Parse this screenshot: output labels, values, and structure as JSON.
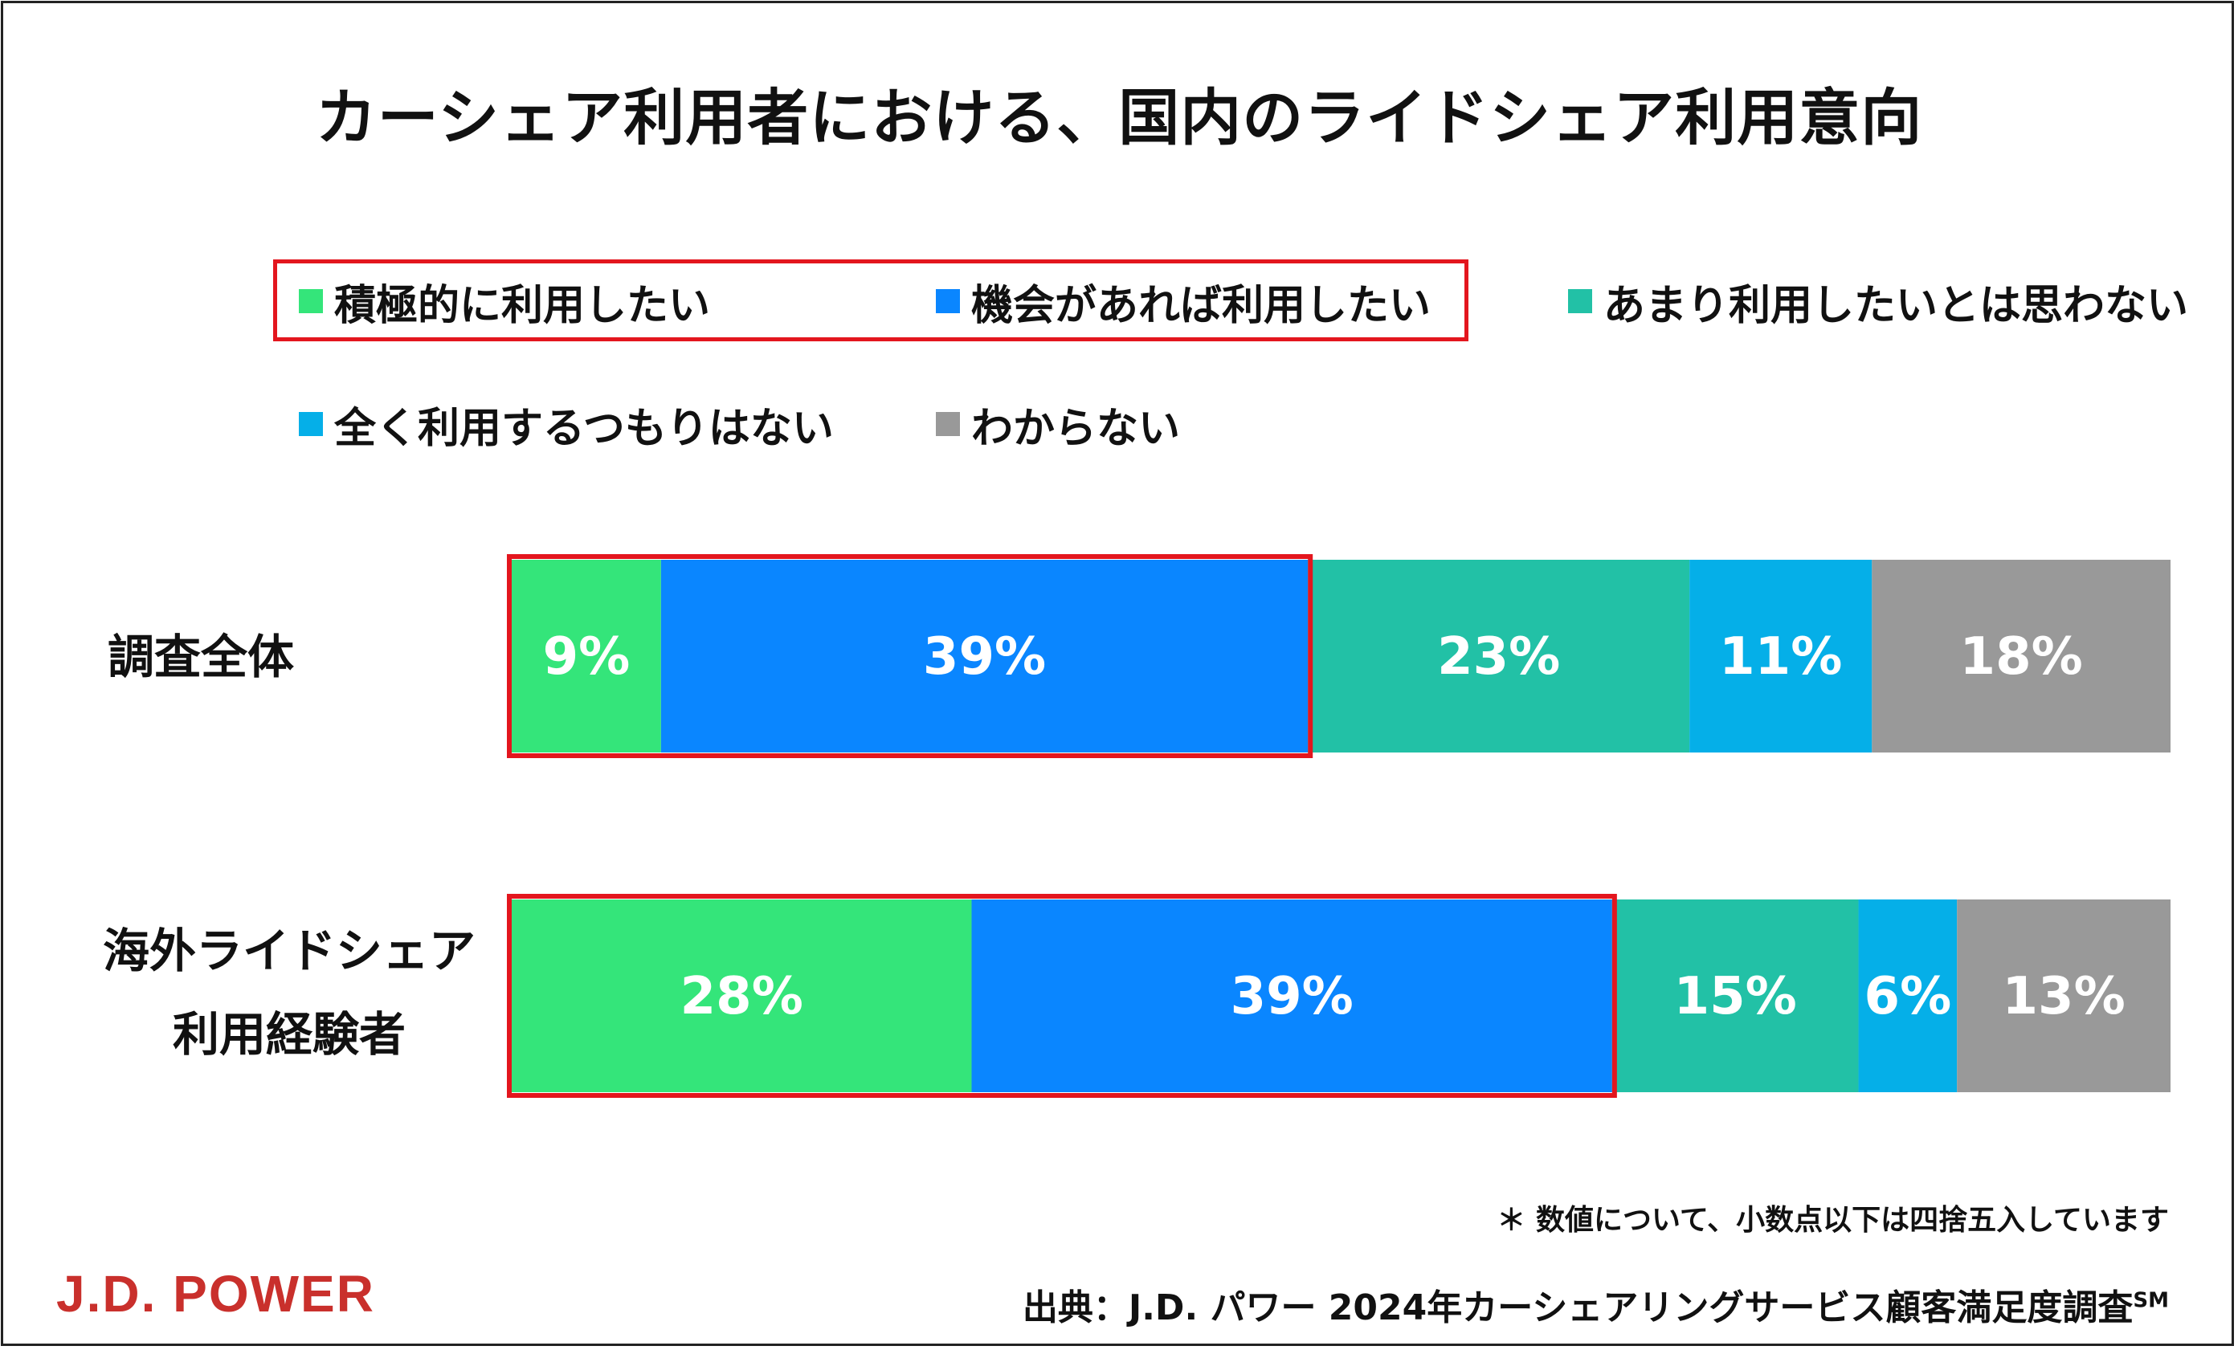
{
  "chart_data": {
    "type": "bar",
    "orientation": "horizontal",
    "stacked": true,
    "title": "カーシェア利用者における、国内のライドシェア利用意向",
    "categories": [
      "調査全体",
      "海外ライドシェア\n利用経験者"
    ],
    "category_lines": [
      [
        "調査全体"
      ],
      [
        "海外ライドシェア",
        "利用経験者"
      ]
    ],
    "series": [
      {
        "name": "積極的に利用したい",
        "color": "#34e57a",
        "values": [
          9,
          28
        ]
      },
      {
        "name": "機会があれば利用したい",
        "color": "#0a86ff",
        "values": [
          39,
          39
        ]
      },
      {
        "name": "あまり利用したいとは思わない",
        "color": "#22c1a6",
        "values": [
          23,
          15
        ]
      },
      {
        "name": "全く利用するつもりはない",
        "color": "#05afe8",
        "values": [
          11,
          6
        ]
      },
      {
        "name": "わからない",
        "color": "#999999",
        "values": [
          18,
          13
        ]
      }
    ],
    "value_suffix": "%",
    "xlim": [
      0,
      100
    ],
    "highlighted_series": [
      "積極的に利用したい",
      "機会があれば利用したい"
    ],
    "highlight_color": "#e3161e",
    "legend_position": "top"
  },
  "footnote": "＊ 数値について、小数点以下は四捨五入しています",
  "logo_text": "J.D. POWER",
  "source": {
    "text": "出典：J.D. パワー 2024年カーシェアリングサービス顧客満足度調査",
    "mark": "SM"
  }
}
